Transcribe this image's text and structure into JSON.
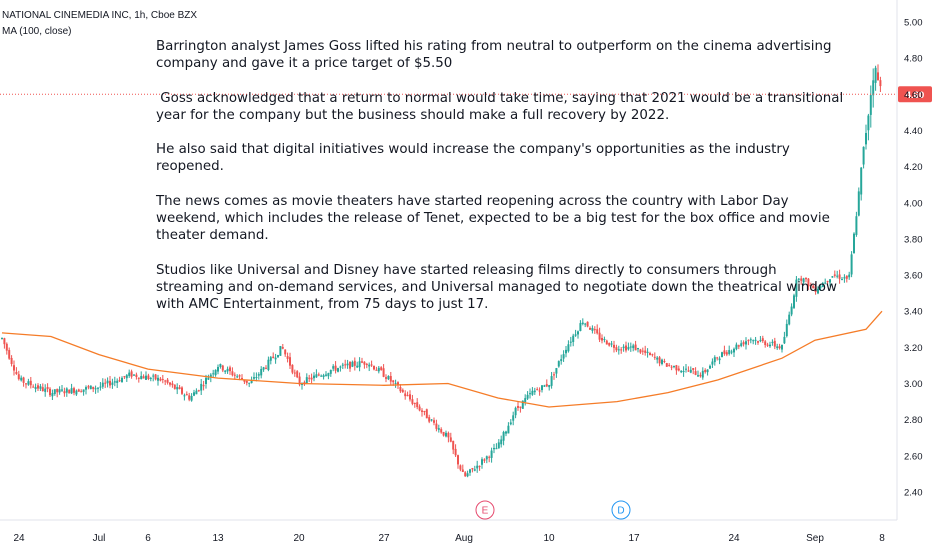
{
  "header": {
    "title": "NATIONAL CINEMEDIA INC, 1h, Cboe BZX",
    "indicator": "MA (100, close)"
  },
  "notes": [
    "Barrington analyst James Goss lifted his rating from neutral to outperform on the cinema advertising company and gave it a price target of $5.50",
    " Goss acknowledged that a return to normal would take time, saying that 2021 would be a transitional year for the company but the business should make a full recovery by 2022.",
    "He also said that digital initiatives would increase the company's opportunities as the industry reopened.",
    "The news comes as movie theaters have started reopening across the country with Labor Day weekend, which includes the release of Tenet, expected to be a big test for the box office and movie theater demand.",
    "Studios like Universal and Disney have started releasing films directly to consumers through streaming and on-demand services, and Universal managed to negotiate down the theatrical window with AMC Entertainment, from 75 days to just 17."
  ],
  "colors": {
    "up": "#26a69a",
    "down": "#ef5350",
    "ma": "#f57c28",
    "price_line": "#ef5350",
    "earnings": "#e64a6e",
    "dividend": "#2196f3",
    "axis_text": "#131722"
  },
  "chart_data": {
    "type": "candlestick",
    "title": "NATIONAL CINEMEDIA INC, 1h, Cboe BZX",
    "ylim": [
      2.3,
      5.05
    ],
    "yticks": [
      "2.40",
      "2.60",
      "2.80",
      "3.00",
      "3.20",
      "3.40",
      "3.60",
      "3.80",
      "4.00",
      "4.20",
      "4.40",
      "4.60",
      "4.80",
      "5.00"
    ],
    "xticks": [
      "24",
      "Jul",
      "6",
      "13",
      "20",
      "27",
      "Aug",
      "10",
      "17",
      "24",
      "Sep",
      "8"
    ],
    "last_price": "4.60",
    "grid": false,
    "events": [
      {
        "label": "E",
        "at": "Aug 4"
      },
      {
        "label": "D",
        "at": "Aug 14"
      }
    ],
    "anchors": [
      [
        "Jun 22",
        3.25
      ],
      [
        "Jun 24",
        3.02
      ],
      [
        "Jun 26",
        2.95
      ],
      [
        "Jul 1",
        2.98
      ],
      [
        "Jul 3",
        3.05
      ],
      [
        "Jul 7",
        3.02
      ],
      [
        "Jul 9",
        2.92
      ],
      [
        "Jul 13",
        3.1
      ],
      [
        "Jul 15",
        3.0
      ],
      [
        "Jul 17",
        3.2
      ],
      [
        "Jul 20",
        3.0
      ],
      [
        "Jul 22",
        3.08
      ],
      [
        "Jul 24",
        3.12
      ],
      [
        "Jul 27",
        3.05
      ],
      [
        "Jul 29",
        2.88
      ],
      [
        "Jul 31",
        2.7
      ],
      [
        "Aug 3",
        2.48
      ],
      [
        "Aug 5",
        2.65
      ],
      [
        "Aug 6",
        2.85
      ],
      [
        "Aug 7",
        2.95
      ],
      [
        "Aug 10",
        3.0
      ],
      [
        "Aug 11",
        3.2
      ],
      [
        "Aug 12",
        3.35
      ],
      [
        "Aug 13",
        3.25
      ],
      [
        "Aug 14",
        3.2
      ],
      [
        "Aug 17",
        3.2
      ],
      [
        "Aug 19",
        3.1
      ],
      [
        "Aug 21",
        3.05
      ],
      [
        "Aug 24",
        3.15
      ],
      [
        "Aug 26",
        3.25
      ],
      [
        "Aug 28",
        3.2
      ],
      [
        "Aug 31",
        3.6
      ],
      [
        "Sep 1",
        3.52
      ],
      [
        "Sep 2",
        3.6
      ],
      [
        "Sep 3",
        3.58
      ],
      [
        "Sep 4",
        4.4
      ],
      [
        "Sep 5",
        4.75
      ],
      [
        "Sep 7",
        4.6
      ]
    ],
    "ma_series": {
      "name": "MA (100, close)",
      "points": [
        [
          "Jun 22",
          3.28
        ],
        [
          "Jun 26",
          3.26
        ],
        [
          "Jul 1",
          3.16
        ],
        [
          "Jul 6",
          3.08
        ],
        [
          "Jul 13",
          3.03
        ],
        [
          "Jul 20",
          3.0
        ],
        [
          "Jul 27",
          2.99
        ],
        [
          "Jul 31",
          3.0
        ],
        [
          "Aug 5",
          2.92
        ],
        [
          "Aug 10",
          2.87
        ],
        [
          "Aug 14",
          2.9
        ],
        [
          "Aug 19",
          2.95
        ],
        [
          "Aug 24",
          3.02
        ],
        [
          "Aug 28",
          3.14
        ],
        [
          "Sep 1",
          3.24
        ],
        [
          "Sep 4",
          3.3
        ],
        [
          "Sep 7",
          3.4
        ]
      ]
    }
  }
}
